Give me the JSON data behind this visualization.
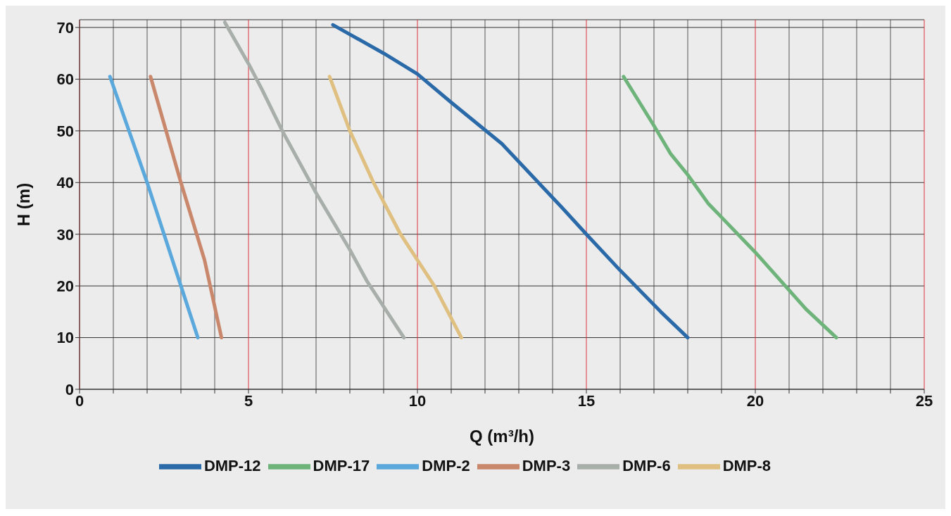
{
  "chart_data": {
    "type": "line",
    "xlabel": "Q (m³/h)",
    "ylabel": "H (m)",
    "xlim": [
      0,
      25
    ],
    "ylim": [
      0,
      71.5
    ],
    "xticks": [
      0,
      {
        "value": 1,
        "label": null
      },
      {
        "value": 2,
        "label": null
      },
      {
        "value": 3,
        "label": null
      },
      {
        "value": 4,
        "label": null
      },
      5,
      {
        "value": 6,
        "label": null
      },
      {
        "value": 7,
        "label": null
      },
      {
        "value": 8,
        "label": null
      },
      {
        "value": 9,
        "label": null
      },
      10,
      {
        "value": 11,
        "label": null
      },
      {
        "value": 12,
        "label": null
      },
      {
        "value": 13,
        "label": null
      },
      {
        "value": 14,
        "label": null
      },
      15,
      {
        "value": 16,
        "label": null
      },
      {
        "value": 17,
        "label": null
      },
      {
        "value": 18,
        "label": null
      },
      {
        "value": 19,
        "label": null
      },
      20,
      {
        "value": 21,
        "label": null
      },
      {
        "value": 22,
        "label": null
      },
      {
        "value": 23,
        "label": null
      },
      {
        "value": 24,
        "label": null
      },
      25
    ],
    "yticks": [
      0,
      10,
      20,
      30,
      40,
      50,
      60,
      70
    ],
    "grid": true,
    "legend": "bottom",
    "marker": "none",
    "line_style": "solid",
    "series": [
      {
        "name": "DMP-2",
        "color": "#5aa8dc",
        "x": [
          0.9,
          2,
          3,
          3.5
        ],
        "values": [
          60.5,
          40,
          20,
          10
        ]
      },
      {
        "name": "DMP-3",
        "color": "#c9876c",
        "x": [
          2.1,
          3,
          3.7,
          4.2
        ],
        "values": [
          60.5,
          40,
          25,
          10
        ]
      },
      {
        "name": "DMP-6",
        "color": "#a8afab",
        "x": [
          4.3,
          5,
          5.4,
          6,
          7,
          8,
          8.5,
          9.6
        ],
        "values": [
          71,
          63,
          58,
          50,
          38,
          27,
          21,
          10
        ]
      },
      {
        "name": "DMP-8",
        "color": "#dfc080",
        "x": [
          7.4,
          8,
          8.7,
          9.5,
          10.5,
          11.3
        ],
        "values": [
          60.5,
          50,
          40,
          30,
          20,
          10
        ]
      },
      {
        "name": "DMP-12",
        "color": "#2a6aa8",
        "x": [
          7.5,
          9,
          10,
          11,
          12.5,
          14.3,
          15,
          16,
          17.2,
          18
        ],
        "values": [
          70.5,
          65,
          61,
          55.5,
          47.5,
          35,
          30,
          23,
          15,
          10
        ]
      },
      {
        "name": "DMP-17",
        "color": "#6db37a",
        "x": [
          16.1,
          17,
          17.5,
          18,
          18.6,
          20,
          21.5,
          22.4
        ],
        "values": [
          60.5,
          51,
          45.5,
          41.5,
          36,
          26.5,
          15.5,
          10
        ]
      }
    ]
  }
}
